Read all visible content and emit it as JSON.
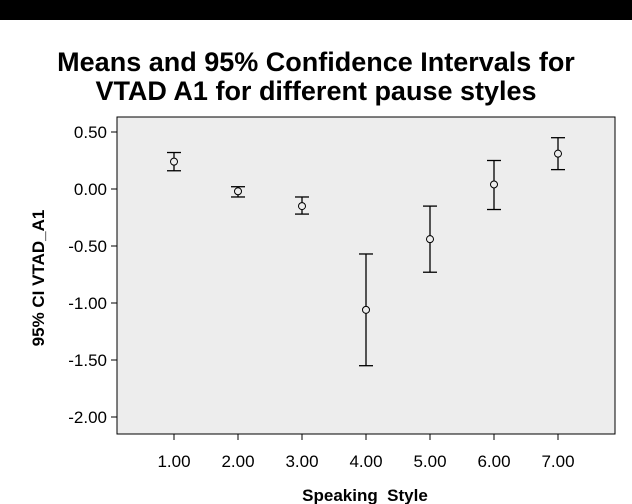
{
  "chart_data": {
    "type": "errorbar",
    "title_lines": [
      "Means and 95% Confidence Intervals for",
      "VTAD A1 for different pause styles"
    ],
    "xlabel": "Speaking  Style",
    "ylabel": "95% CI VTAD_A1",
    "categories": [
      "1.00",
      "2.00",
      "3.00",
      "4.00",
      "5.00",
      "6.00",
      "7.00"
    ],
    "y_ticks": [
      "0.50",
      "0.00",
      "-0.50",
      "-1.00",
      "-1.50",
      "-2.00"
    ],
    "ylim": [
      -2.15,
      0.55
    ],
    "grid": false,
    "points": [
      {
        "x": "1.00",
        "mean": 0.24,
        "lower": 0.16,
        "upper": 0.32
      },
      {
        "x": "2.00",
        "mean": -0.02,
        "lower": -0.07,
        "upper": 0.02
      },
      {
        "x": "3.00",
        "mean": -0.15,
        "lower": -0.22,
        "upper": -0.07
      },
      {
        "x": "4.00",
        "mean": -1.06,
        "lower": -1.55,
        "upper": -0.57
      },
      {
        "x": "5.00",
        "mean": -0.44,
        "lower": -0.73,
        "upper": -0.15
      },
      {
        "x": "6.00",
        "mean": 0.04,
        "lower": -0.18,
        "upper": 0.25
      },
      {
        "x": "7.00",
        "mean": 0.31,
        "lower": 0.17,
        "upper": 0.45
      }
    ],
    "colors": {
      "plot_background": "#ededed",
      "marks": "#000000"
    }
  }
}
